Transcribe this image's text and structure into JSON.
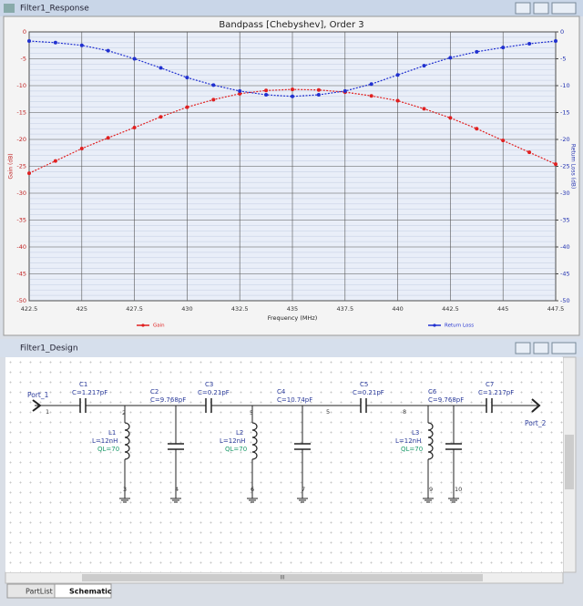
{
  "response_window": {
    "title": "Filter1_Response"
  },
  "chart_data": {
    "type": "line",
    "title": "Bandpass [Chebyshev], Order 3",
    "xlabel": "Frequency (MHz)",
    "ylabel": "Gain (dB)",
    "y2label": "Return Loss (dB)",
    "x": [
      422.5,
      423.75,
      425,
      426.25,
      427.5,
      428.75,
      430,
      431.25,
      432.5,
      433.75,
      435,
      436.25,
      437.5,
      438.75,
      440,
      441.25,
      442.5,
      443.75,
      445,
      446.25,
      447.5
    ],
    "series": [
      {
        "name": "Gain",
        "color": "#e02020",
        "values": [
          -26.3,
          -24,
          -21.7,
          -19.7,
          -17.8,
          -15.8,
          -14,
          -12.6,
          -11.5,
          -10.9,
          -10.7,
          -10.8,
          -11.2,
          -11.9,
          -12.8,
          -14.3,
          -16,
          -18,
          -20.2,
          -22.4,
          -24.6
        ]
      },
      {
        "name": "Return Loss",
        "color": "#2030d0",
        "axis": "y2",
        "values": [
          -1.7,
          -2,
          -2.5,
          -3.5,
          -5,
          -6.7,
          -8.5,
          -9.9,
          -11,
          -11.7,
          -12,
          -11.7,
          -11,
          -9.7,
          -8,
          -6.3,
          -4.8,
          -3.7,
          -2.9,
          -2.2,
          -1.7
        ]
      }
    ],
    "xlim": [
      422.5,
      447.5
    ],
    "xticks": [
      422.5,
      425,
      427.5,
      430,
      432.5,
      435,
      437.5,
      440,
      442.5,
      445,
      447.5
    ],
    "ylim": [
      -50,
      0
    ],
    "yticks": [
      0,
      -5,
      -10,
      -15,
      -20,
      -25,
      -30,
      -35,
      -40,
      -45,
      -50
    ],
    "y2lim": [
      -50,
      0
    ],
    "y2ticks": [
      0,
      -5,
      -10,
      -15,
      -20,
      -25,
      -30,
      -35,
      -40,
      -45,
      -50
    ],
    "grid": true
  },
  "design_window": {
    "title": "Filter1_Design",
    "ports": [
      "Port_1",
      "Port_2"
    ],
    "capacitors": [
      {
        "name": "C1",
        "value": "C=1.217pF"
      },
      {
        "name": "C2",
        "value": "C=9.768pF"
      },
      {
        "name": "C3",
        "value": "C=0.21pF"
      },
      {
        "name": "C4",
        "value": "C=10.74pF"
      },
      {
        "name": "C5",
        "value": "C=0.21pF"
      },
      {
        "name": "C6",
        "value": "C=9.768pF"
      },
      {
        "name": "C7",
        "value": "C=1.217pF"
      }
    ],
    "inductors": [
      {
        "name": "L1",
        "value": "L=12nH",
        "q": "QL=70"
      },
      {
        "name": "L2",
        "value": "L=12nH",
        "q": "QL=70"
      },
      {
        "name": "L3",
        "value": "L=12nH",
        "q": "QL=70"
      }
    ],
    "nodes": [
      "1",
      "2",
      "3",
      "4",
      "5",
      "6",
      "7",
      "5",
      "8",
      "9",
      "10"
    ],
    "tabs": [
      "PartList",
      "Schematic"
    ],
    "scroll_label": "III"
  }
}
